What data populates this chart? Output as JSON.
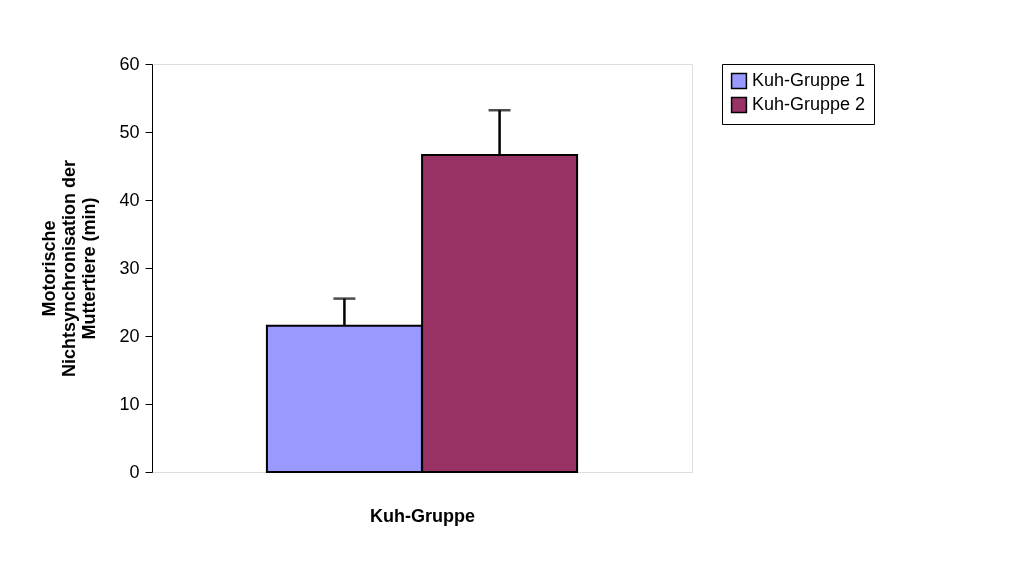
{
  "chart_data": {
    "type": "bar",
    "xlabel": "Kuh-Gruppe",
    "ylabel": "Motorische\nNichtsynchronisation der\nMuttertiere (min)",
    "categories": [
      null
    ],
    "series": [
      {
        "name": "Kuh-Gruppe 1",
        "color": "#9999ff",
        "values": [
          21.5
        ],
        "errors": [
          [
            21.5,
            25.5
          ]
        ]
      },
      {
        "name": "Kuh-Gruppe 2",
        "color": "#993366",
        "values": [
          46.6
        ],
        "errors": [
          [
            46.6,
            53.2
          ]
        ]
      }
    ],
    "ylim": [
      0,
      60
    ],
    "yticks": [
      0,
      10,
      20,
      30,
      40,
      50,
      60
    ],
    "grid": false,
    "legend": "right",
    "tick_labels": "y"
  }
}
